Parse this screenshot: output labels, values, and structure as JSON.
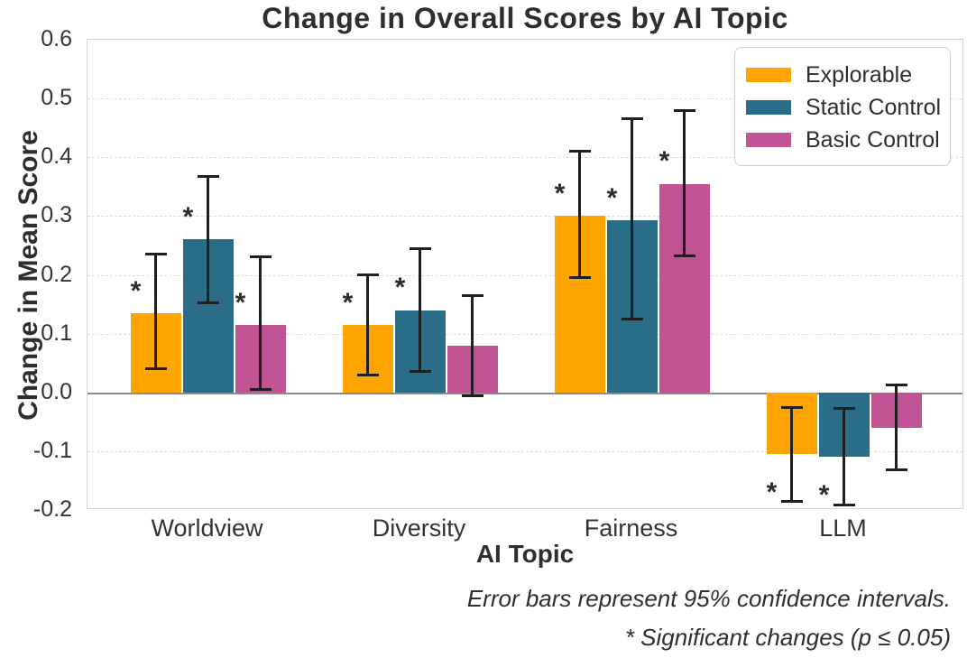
{
  "title": "Change in Overall Scores by AI Topic",
  "y_axis_label": "Change in Mean Score",
  "x_axis_label": "AI Topic",
  "footnotes": {
    "line1": "Error bars represent 95% confidence intervals.",
    "line2": "* Significant changes (p ≤ 0.05)"
  },
  "legend": {
    "position": "upper right",
    "items": [
      {
        "label": "Explorable",
        "color": "#FFA502"
      },
      {
        "label": "Static Control",
        "color": "#2A6D89"
      },
      {
        "label": "Basic Control",
        "color": "#C05394"
      }
    ]
  },
  "chart_data": {
    "type": "bar",
    "title": "Change in Overall Scores by AI Topic",
    "xlabel": "AI Topic",
    "ylabel": "Change in Mean Score",
    "ylim": [
      -0.2,
      0.6
    ],
    "yticks": [
      0.6,
      0.5,
      0.4,
      0.3,
      0.2,
      0.1,
      0.0,
      -0.1,
      -0.2
    ],
    "grid": true,
    "legend_position": "upper right",
    "error_bars": "95% confidence intervals",
    "categories": [
      "Worldview",
      "Diversity",
      "Fairness",
      "LLM"
    ],
    "series": [
      {
        "name": "Explorable",
        "color": "#FFA502",
        "values": [
          0.135,
          0.115,
          0.3,
          -0.105
        ],
        "ci_low": [
          0.04,
          0.03,
          0.195,
          -0.185
        ],
        "ci_high": [
          0.235,
          0.2,
          0.41,
          -0.026
        ],
        "significant": [
          true,
          true,
          true,
          true
        ]
      },
      {
        "name": "Static Control",
        "color": "#2A6D89",
        "values": [
          0.26,
          0.14,
          0.293,
          -0.11
        ],
        "ci_low": [
          0.153,
          0.035,
          0.124,
          -0.192
        ],
        "ci_high": [
          0.368,
          0.245,
          0.465,
          -0.027
        ],
        "significant": [
          true,
          true,
          true,
          true
        ]
      },
      {
        "name": "Basic Control",
        "color": "#C05394",
        "values": [
          0.115,
          0.08,
          0.355,
          -0.06
        ],
        "ci_low": [
          0.005,
          -0.005,
          0.232,
          -0.132
        ],
        "ci_high": [
          0.23,
          0.165,
          0.48,
          0.012
        ],
        "significant": [
          true,
          false,
          true,
          false
        ]
      }
    ]
  }
}
